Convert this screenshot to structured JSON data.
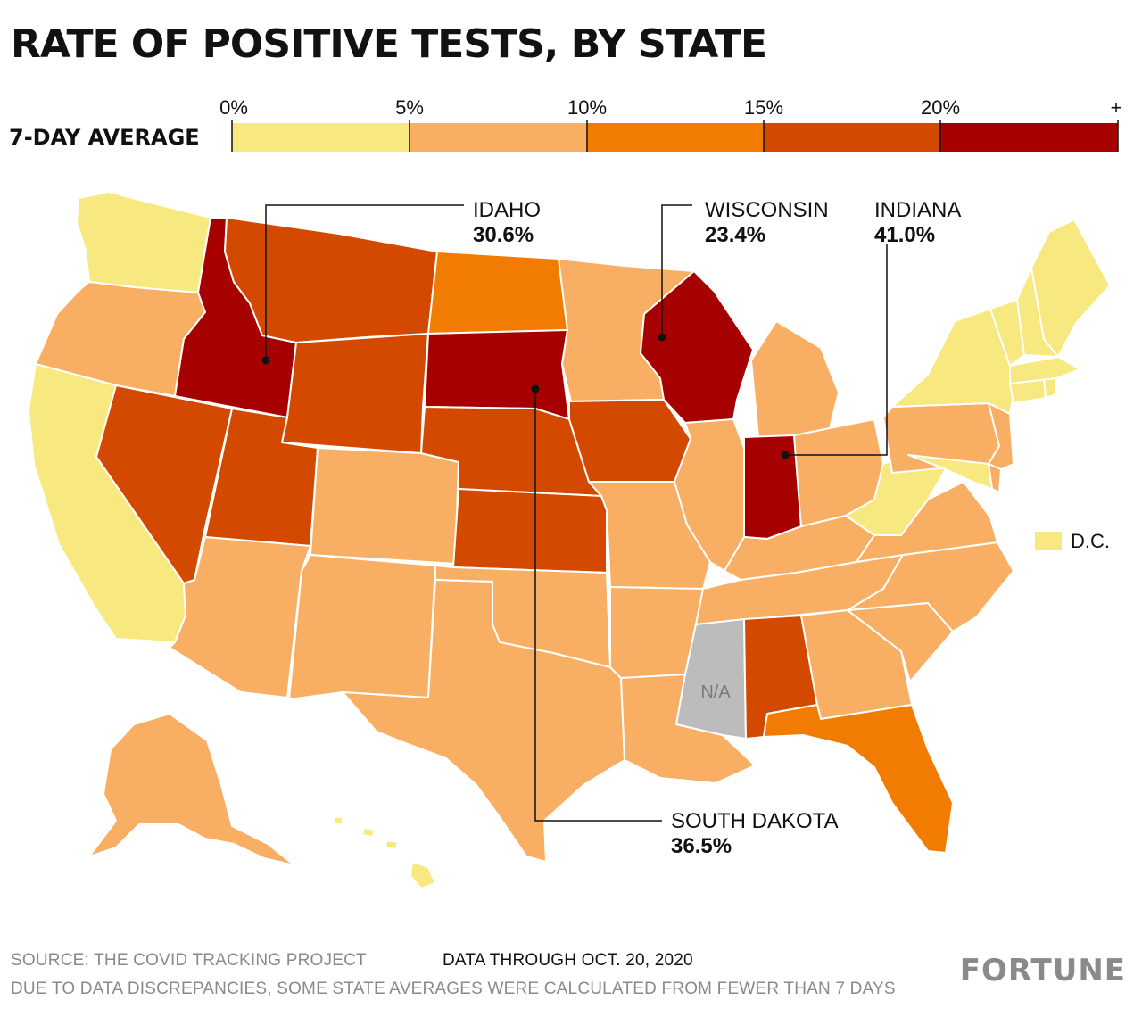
{
  "title": "RATE OF POSITIVE TESTS, BY STATE",
  "legend": {
    "label": "7-DAY AVERAGE",
    "ticks": [
      "0%",
      "5%",
      "10%",
      "15%",
      "20%",
      "+"
    ],
    "bins": [
      {
        "from": 0,
        "to": 5,
        "color": "#f7e97f"
      },
      {
        "from": 5,
        "to": 10,
        "color": "#f9af63"
      },
      {
        "from": 10,
        "to": 15,
        "color": "#f27c02"
      },
      {
        "from": 15,
        "to": 20,
        "color": "#d44900"
      },
      {
        "from": 20,
        "to": null,
        "color": "#a60000"
      }
    ]
  },
  "na_color": "#bcbcbc",
  "na_label": "N/A",
  "dc_label": "D.C.",
  "state_bins": {
    "WA": 0,
    "OR": 1,
    "CA": 0,
    "NV": 3,
    "ID": 4,
    "MT": 3,
    "WY": 3,
    "UT": 3,
    "AZ": 1,
    "CO": 1,
    "NM": 1,
    "ND": 2,
    "SD": 4,
    "NE": 3,
    "KS": 3,
    "OK": 1,
    "TX": 1,
    "MN": 1,
    "IA": 3,
    "MO": 1,
    "AR": 1,
    "LA": 1,
    "WI": 4,
    "IL": 1,
    "MI": 1,
    "IN": 4,
    "OH": 1,
    "KY": 1,
    "TN": 1,
    "MS": null,
    "AL": 3,
    "GA": 1,
    "FL": 2,
    "SC": 1,
    "NC": 1,
    "VA": 1,
    "WV": 0,
    "PA": 1,
    "NY": 0,
    "VT": 0,
    "NH": 0,
    "ME": 0,
    "MA": 0,
    "CT": 0,
    "RI": 0,
    "NJ": 1,
    "DE": 1,
    "MD": 0,
    "AK": 1,
    "HI": 0,
    "DC": 0
  },
  "callouts": [
    {
      "state": "IDAHO",
      "value": "30.6%"
    },
    {
      "state": "WISCONSIN",
      "value": "23.4%"
    },
    {
      "state": "INDIANA",
      "value": "41.0%"
    },
    {
      "state": "SOUTH DAKOTA",
      "value": "36.5%"
    }
  ],
  "footer": {
    "source": "SOURCE: THE COVID TRACKING PROJECT",
    "data_through": "DATA THROUGH OCT. 20, 2020",
    "note": "DUE TO DATA DISCREPANCIES, SOME STATE AVERAGES WERE CALCULATED FROM FEWER THAN 7 DAYS",
    "brand": "FORTUNE"
  }
}
